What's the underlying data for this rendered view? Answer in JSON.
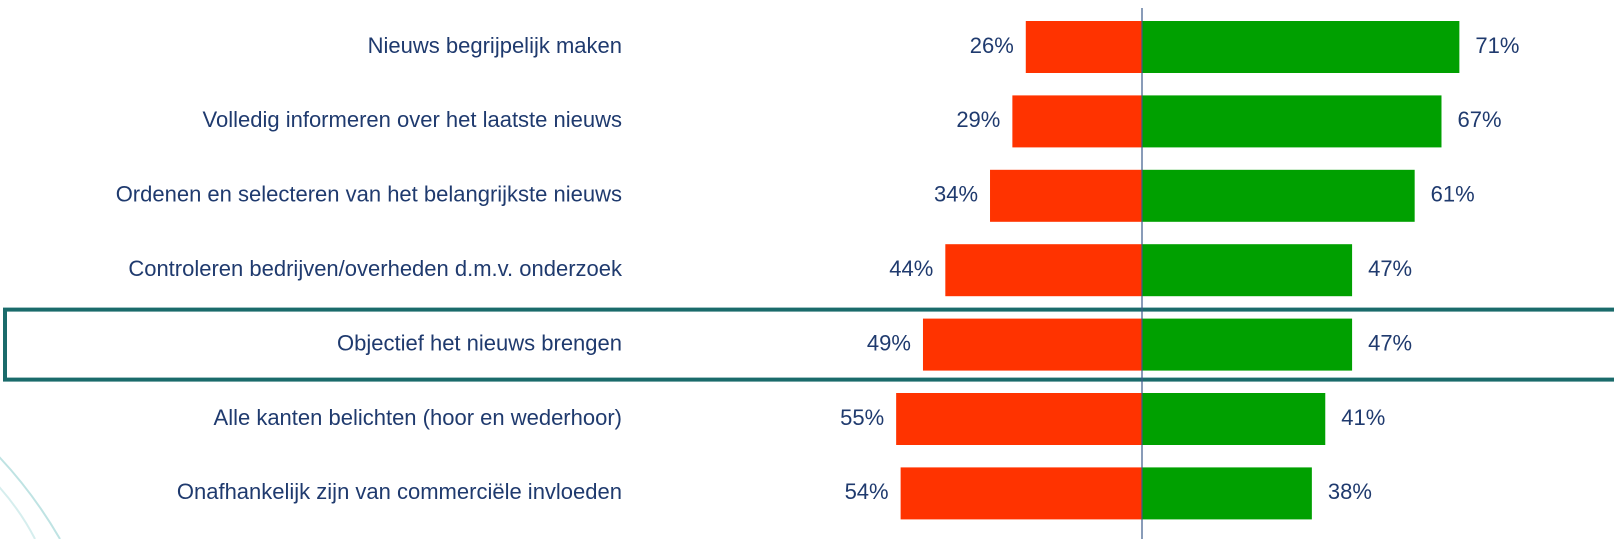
{
  "chart_data": {
    "type": "diverging_bar",
    "categories": [
      "Nieuws begrijpelijk maken",
      "Volledig informeren over het laatste nieuws",
      "Ordenen en selecteren van het belangrijkste nieuws",
      "Controleren bedrijven/overheden d.m.v. onderzoek",
      "Objectief het nieuws brengen",
      "Alle kanten belichten (hoor en wederhoor)",
      "Onafhankelijk zijn van commerciële invloeden"
    ],
    "series": [
      {
        "color": "#ff3300",
        "side": "left",
        "values": [
          26,
          29,
          34,
          44,
          49,
          55,
          54
        ],
        "value_labels": [
          "26%",
          "29%",
          "34%",
          "44%",
          "49%",
          "55%",
          "54%"
        ]
      },
      {
        "color": "#00a000",
        "side": "right",
        "values": [
          71,
          67,
          61,
          47,
          47,
          41,
          38
        ],
        "value_labels": [
          "71%",
          "67%",
          "61%",
          "47%",
          "47%",
          "41%",
          "38%"
        ]
      }
    ],
    "highlight": 4
  }
}
